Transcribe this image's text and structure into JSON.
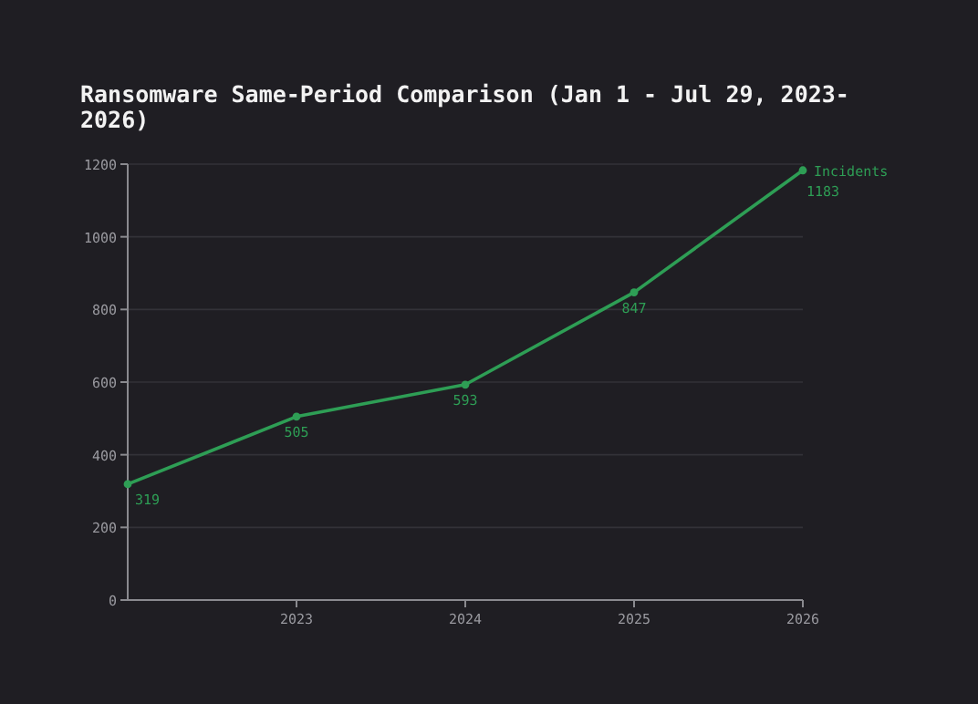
{
  "chart_data": {
    "type": "line",
    "title": "Ransomware Same-Period Comparison (Jan 1 - Jul 29, 2023-2026)",
    "x": [
      2022,
      2023,
      2024,
      2025,
      2026
    ],
    "series": [
      {
        "name": "Incidents",
        "color": "#2e9e55",
        "values": [
          319,
          505,
          593,
          847,
          1183
        ]
      }
    ],
    "xlim": [
      2022,
      2026
    ],
    "xticks": [
      2023,
      2024,
      2025,
      2026
    ],
    "ylim": [
      0,
      1200
    ],
    "yticks": [
      0,
      200,
      400,
      600,
      800,
      1000,
      1200
    ],
    "grid": "y",
    "marker": "circle",
    "line_style": "solid",
    "data_labels": true
  }
}
